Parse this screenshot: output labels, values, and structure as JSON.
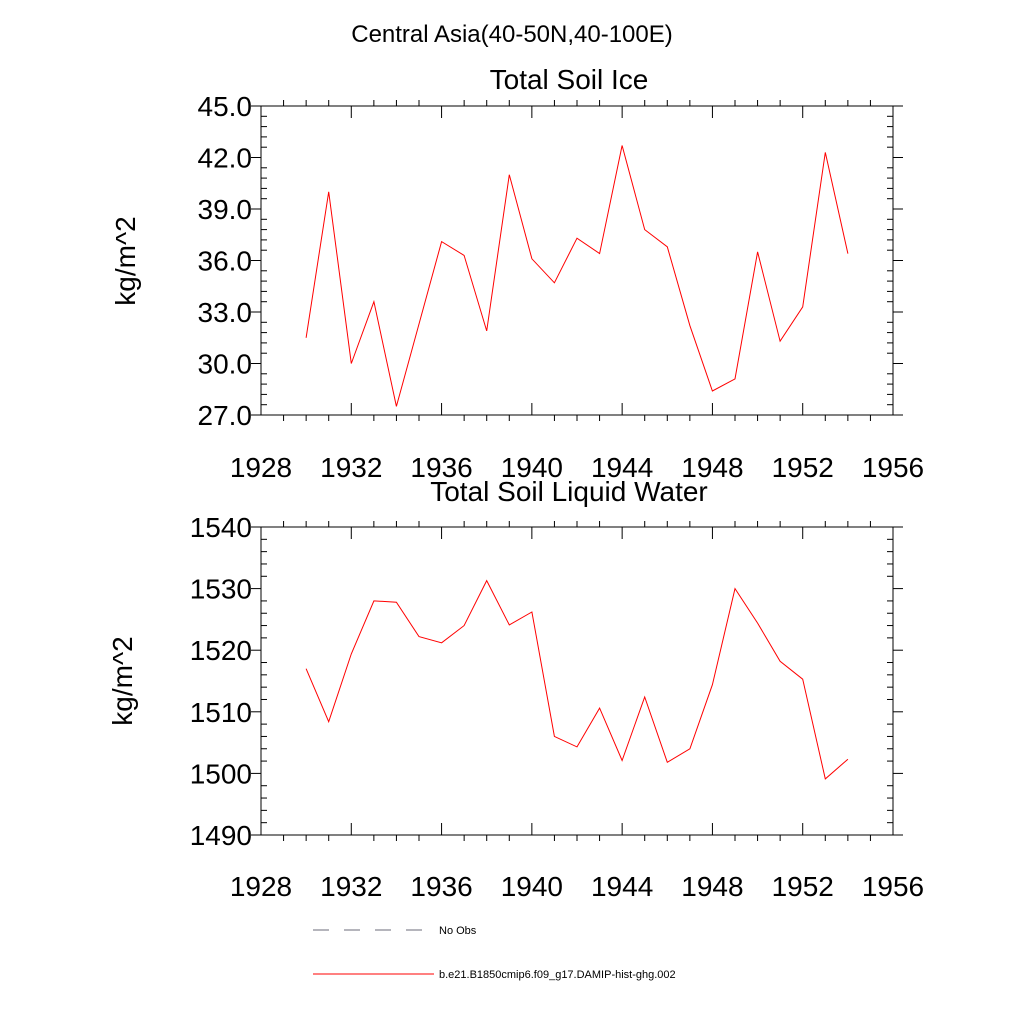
{
  "figure_title": "Central Asia(40-50N,40-100E)",
  "colors": {
    "series": "#ff0000",
    "no_obs": "#6b6b7a",
    "axis": "#000000"
  },
  "legend": {
    "items": [
      {
        "label": "No Obs",
        "style": "dashed"
      },
      {
        "label": "b.e21.B1850cmip6.f09_g17.DAMIP-hist-ghg.002",
        "style": "solid"
      }
    ]
  },
  "chart_data": [
    {
      "type": "line",
      "title": "Total Soil Ice",
      "xlabel": "",
      "ylabel": "kg/m^2",
      "xlim": [
        1928,
        1956
      ],
      "ylim": [
        27,
        45
      ],
      "xticks": [
        1928,
        1932,
        1936,
        1940,
        1944,
        1948,
        1952,
        1956
      ],
      "xtick_labels": [
        "1928",
        "1932",
        "1936",
        "1940",
        "1944",
        "1948",
        "1952",
        "1956"
      ],
      "yticks": [
        27,
        30,
        33,
        36,
        39,
        42,
        45
      ],
      "ytick_labels": [
        "27.0",
        "30.0",
        "33.0",
        "36.0",
        "39.0",
        "42.0",
        "45.0"
      ],
      "grid": false,
      "series": [
        {
          "x": [
            1930,
            1931,
            1932,
            1933,
            1934,
            1935,
            1936,
            1937,
            1938,
            1939,
            1940,
            1941,
            1942,
            1943,
            1944,
            1945,
            1946,
            1947,
            1948,
            1949,
            1950,
            1951,
            1952,
            1953,
            1954
          ],
          "values": [
            31.5,
            40.0,
            30.0,
            33.6,
            27.5,
            32.3,
            37.1,
            36.3,
            31.9,
            41.0,
            36.1,
            34.7,
            37.3,
            36.4,
            42.7,
            37.8,
            36.8,
            32.2,
            28.4,
            29.1,
            36.5,
            31.3,
            33.3,
            42.3,
            36.4
          ]
        }
      ]
    },
    {
      "type": "line",
      "title": "Total Soil Liquid Water",
      "xlabel": "",
      "ylabel": "kg/m^2",
      "xlim": [
        1928,
        1956
      ],
      "ylim": [
        1490,
        1540
      ],
      "xticks": [
        1928,
        1932,
        1936,
        1940,
        1944,
        1948,
        1952,
        1956
      ],
      "xtick_labels": [
        "1928",
        "1932",
        "1936",
        "1940",
        "1944",
        "1948",
        "1952",
        "1956"
      ],
      "yticks": [
        1490,
        1500,
        1510,
        1520,
        1530,
        1540
      ],
      "ytick_labels": [
        "1490",
        "1500",
        "1510",
        "1520",
        "1530",
        "1540"
      ],
      "grid": false,
      "series": [
        {
          "x": [
            1930,
            1931,
            1932,
            1933,
            1934,
            1935,
            1936,
            1937,
            1938,
            1939,
            1940,
            1941,
            1942,
            1943,
            1944,
            1945,
            1946,
            1947,
            1948,
            1949,
            1950,
            1951,
            1952,
            1953,
            1954
          ],
          "values": [
            1517.0,
            1508.4,
            1519.4,
            1528.0,
            1527.8,
            1522.2,
            1521.2,
            1524.0,
            1531.3,
            1524.1,
            1526.2,
            1506.0,
            1504.3,
            1510.6,
            1502.1,
            1512.4,
            1501.8,
            1504.0,
            1514.4,
            1530.0,
            1524.4,
            1518.2,
            1515.3,
            1499.1,
            1502.3
          ]
        }
      ]
    }
  ]
}
